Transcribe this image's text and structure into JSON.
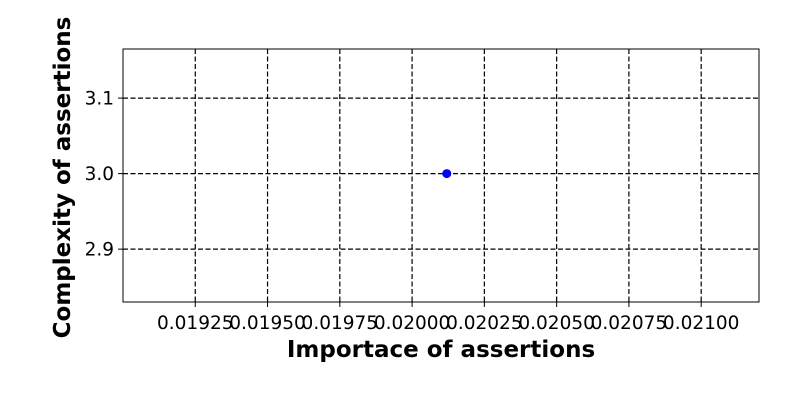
{
  "chart_data": {
    "type": "scatter",
    "title": "",
    "xlabel": "Importace of assertions",
    "ylabel": "Complexity of assertions",
    "xlim": [
      0.019,
      0.0212
    ],
    "ylim": [
      2.83,
      3.165
    ],
    "x_ticks": [
      0.01925,
      0.0195,
      0.01975,
      0.02,
      0.02025,
      0.0205,
      0.02075,
      0.021
    ],
    "x_tick_labels": [
      "0.01925",
      "0.01950",
      "0.01975",
      "0.02000",
      "0.02025",
      "0.02050",
      "0.02075",
      "0.02100"
    ],
    "y_ticks": [
      2.9,
      3.0,
      3.1
    ],
    "y_tick_labels": [
      "2.9",
      "3.0",
      "3.1"
    ],
    "grid": true,
    "legend": "none",
    "series": [
      {
        "color": "#0000ff",
        "points": [
          {
            "x": 0.02012,
            "y": 3.0
          }
        ]
      }
    ]
  }
}
